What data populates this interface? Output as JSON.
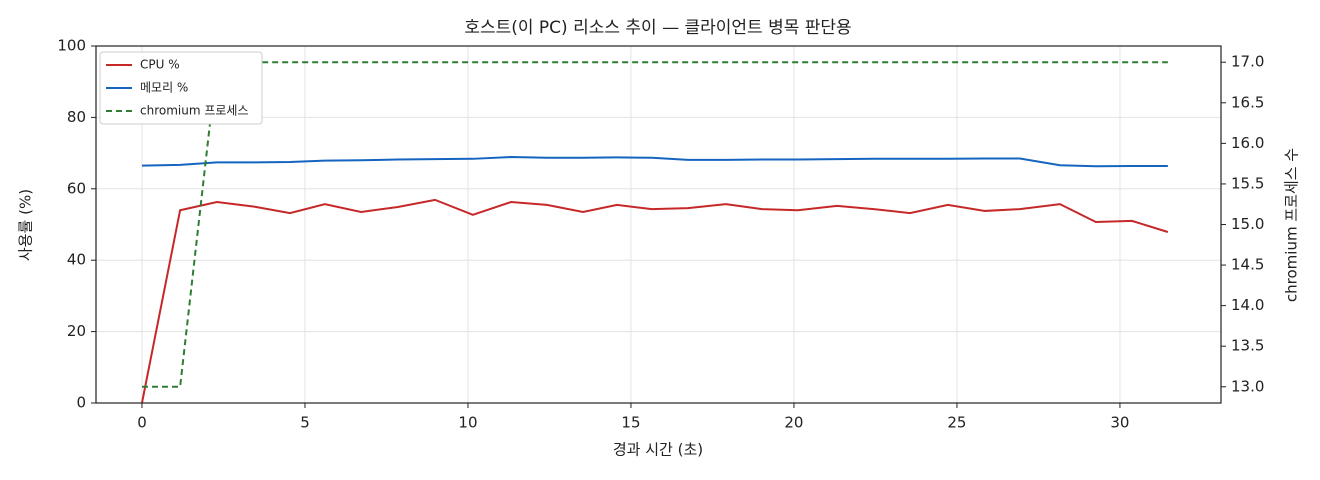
{
  "chart_data": {
    "type": "line",
    "title": "호스트(이 PC) 리소스 추이 — 클라이언트 병목 판단용",
    "xlabel": "경과 시간 (초)",
    "ylabel": "사용률 (%)",
    "y2label": "chromium 프로세스 수",
    "x": [
      0,
      1.17,
      2.3,
      3.44,
      4.54,
      5.61,
      6.72,
      7.85,
      8.99,
      10.15,
      11.32,
      12.42,
      13.53,
      14.57,
      15.64,
      16.75,
      17.91,
      19.02,
      20.12,
      21.32,
      22.45,
      23.56,
      24.72,
      25.86,
      26.93,
      28.16,
      29.26,
      30.37,
      31.47
    ],
    "series": [
      {
        "name": "CPU %",
        "color": "#c62828",
        "values": [
          0,
          54,
          56.3,
          55,
          53.2,
          55.7,
          53.5,
          54.9,
          56.9,
          52.7,
          56.3,
          55.5,
          53.5,
          55.5,
          54.3,
          54.6,
          55.7,
          54.3,
          54,
          55.2,
          54.3,
          53.2,
          55.5,
          53.8,
          54.3,
          55.7,
          50.7,
          51,
          47.9
        ]
      },
      {
        "name": "메모리 %",
        "color": "#1565c0",
        "values": [
          66.5,
          66.7,
          67.4,
          67.4,
          67.5,
          67.9,
          68,
          68.2,
          68.3,
          68.4,
          68.9,
          68.7,
          68.7,
          68.8,
          68.7,
          68.1,
          68.1,
          68.2,
          68.2,
          68.3,
          68.4,
          68.4,
          68.4,
          68.5,
          68.5,
          66.6,
          66.3,
          66.4,
          66.4
        ]
      },
      {
        "name": "chromium 프로세스",
        "color": "#2e7d32",
        "axis": "y2",
        "linestyle": "dashed",
        "values": [
          13,
          13,
          17,
          17,
          17,
          17,
          17,
          17,
          17,
          17,
          17,
          17,
          17,
          17,
          17,
          17,
          17,
          17,
          17,
          17,
          17,
          17,
          17,
          17,
          17,
          17,
          17,
          17,
          17
        ]
      }
    ],
    "xlim": [
      -1.41,
      33.1
    ],
    "xticks": [
      0,
      5,
      10,
      15,
      20,
      25,
      30
    ],
    "ylim": [
      0,
      100
    ],
    "yticks": [
      0,
      20,
      40,
      60,
      80,
      100
    ],
    "y2lim": [
      12.8,
      17.2
    ],
    "y2ticks": [
      {
        "value": 13,
        "label": "13.0"
      },
      13.5,
      {
        "value": 14,
        "label": "14.0"
      },
      14.5,
      {
        "value": 15,
        "label": "15.0"
      },
      15.5,
      {
        "value": 16,
        "label": "16.0"
      },
      16.5,
      {
        "value": 17,
        "label": "17.0"
      }
    ],
    "grid": true,
    "legend": "upper left"
  }
}
